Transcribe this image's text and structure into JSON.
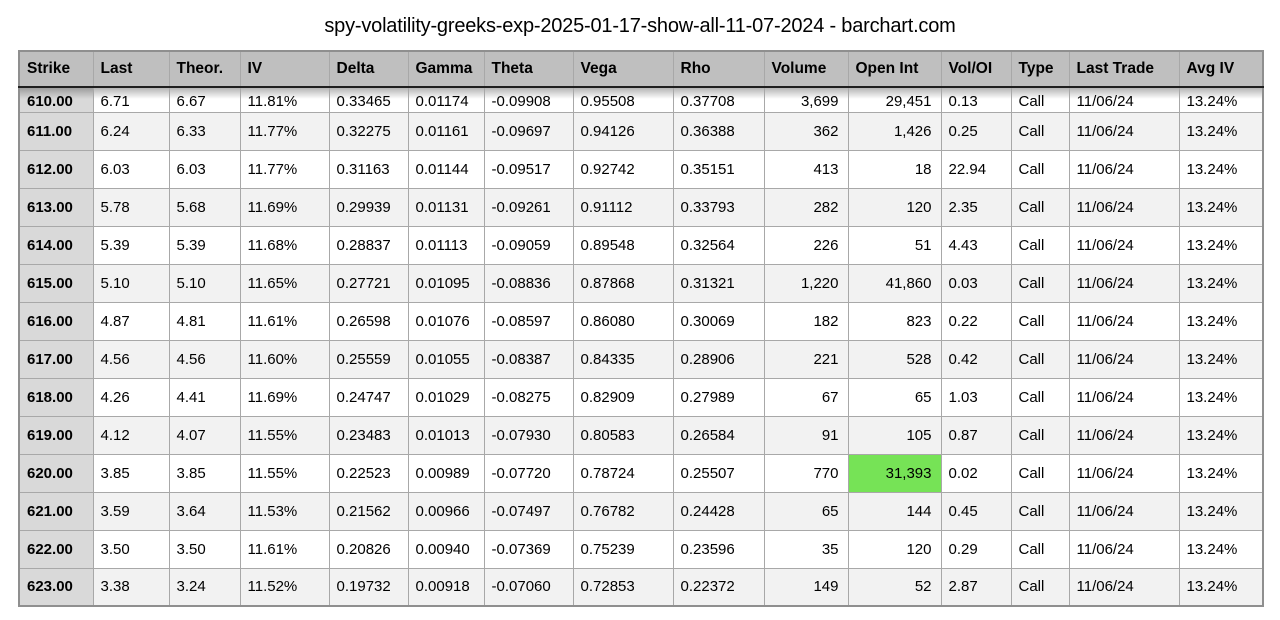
{
  "title": "spy-volatility-greeks-exp-2025-01-17-show-all-11-07-2024 - barchart.com",
  "table": {
    "columns": [
      {
        "key": "strike",
        "label": "Strike"
      },
      {
        "key": "last",
        "label": "Last"
      },
      {
        "key": "theor",
        "label": "Theor."
      },
      {
        "key": "iv",
        "label": "IV"
      },
      {
        "key": "delta",
        "label": "Delta"
      },
      {
        "key": "gamma",
        "label": "Gamma"
      },
      {
        "key": "theta",
        "label": "Theta"
      },
      {
        "key": "vega",
        "label": "Vega"
      },
      {
        "key": "rho",
        "label": "Rho"
      },
      {
        "key": "volume",
        "label": "Volume"
      },
      {
        "key": "open-int",
        "label": "Open Int"
      },
      {
        "key": "vol-oi",
        "label": "Vol/OI"
      },
      {
        "key": "type",
        "label": "Type"
      },
      {
        "key": "last-trade",
        "label": "Last Trade"
      },
      {
        "key": "avg-iv",
        "label": "Avg IV"
      }
    ],
    "rows": [
      [
        "610.00",
        "6.71",
        "6.67",
        "11.81%",
        "0.33465",
        "0.01174",
        "-0.09908",
        "0.95508",
        "0.37708",
        "3,699",
        "29,451",
        "0.13",
        "Call",
        "11/06/24",
        "13.24%"
      ],
      [
        "611.00",
        "6.24",
        "6.33",
        "11.77%",
        "0.32275",
        "0.01161",
        "-0.09697",
        "0.94126",
        "0.36388",
        "362",
        "1,426",
        "0.25",
        "Call",
        "11/06/24",
        "13.24%"
      ],
      [
        "612.00",
        "6.03",
        "6.03",
        "11.77%",
        "0.31163",
        "0.01144",
        "-0.09517",
        "0.92742",
        "0.35151",
        "413",
        "18",
        "22.94",
        "Call",
        "11/06/24",
        "13.24%"
      ],
      [
        "613.00",
        "5.78",
        "5.68",
        "11.69%",
        "0.29939",
        "0.01131",
        "-0.09261",
        "0.91112",
        "0.33793",
        "282",
        "120",
        "2.35",
        "Call",
        "11/06/24",
        "13.24%"
      ],
      [
        "614.00",
        "5.39",
        "5.39",
        "11.68%",
        "0.28837",
        "0.01113",
        "-0.09059",
        "0.89548",
        "0.32564",
        "226",
        "51",
        "4.43",
        "Call",
        "11/06/24",
        "13.24%"
      ],
      [
        "615.00",
        "5.10",
        "5.10",
        "11.65%",
        "0.27721",
        "0.01095",
        "-0.08836",
        "0.87868",
        "0.31321",
        "1,220",
        "41,860",
        "0.03",
        "Call",
        "11/06/24",
        "13.24%"
      ],
      [
        "616.00",
        "4.87",
        "4.81",
        "11.61%",
        "0.26598",
        "0.01076",
        "-0.08597",
        "0.86080",
        "0.30069",
        "182",
        "823",
        "0.22",
        "Call",
        "11/06/24",
        "13.24%"
      ],
      [
        "617.00",
        "4.56",
        "4.56",
        "11.60%",
        "0.25559",
        "0.01055",
        "-0.08387",
        "0.84335",
        "0.28906",
        "221",
        "528",
        "0.42",
        "Call",
        "11/06/24",
        "13.24%"
      ],
      [
        "618.00",
        "4.26",
        "4.41",
        "11.69%",
        "0.24747",
        "0.01029",
        "-0.08275",
        "0.82909",
        "0.27989",
        "67",
        "65",
        "1.03",
        "Call",
        "11/06/24",
        "13.24%"
      ],
      [
        "619.00",
        "4.12",
        "4.07",
        "11.55%",
        "0.23483",
        "0.01013",
        "-0.07930",
        "0.80583",
        "0.26584",
        "91",
        "105",
        "0.87",
        "Call",
        "11/06/24",
        "13.24%"
      ],
      [
        "620.00",
        "3.85",
        "3.85",
        "11.55%",
        "0.22523",
        "0.00989",
        "-0.07720",
        "0.78724",
        "0.25507",
        "770",
        "31,393",
        "0.02",
        "Call",
        "11/06/24",
        "13.24%"
      ],
      [
        "621.00",
        "3.59",
        "3.64",
        "11.53%",
        "0.21562",
        "0.00966",
        "-0.07497",
        "0.76782",
        "0.24428",
        "65",
        "144",
        "0.45",
        "Call",
        "11/06/24",
        "13.24%"
      ],
      [
        "622.00",
        "3.50",
        "3.50",
        "11.61%",
        "0.20826",
        "0.00940",
        "-0.07369",
        "0.75239",
        "0.23596",
        "35",
        "120",
        "0.29",
        "Call",
        "11/06/24",
        "13.24%"
      ],
      [
        "623.00",
        "3.38",
        "3.24",
        "11.52%",
        "0.19732",
        "0.00918",
        "-0.07060",
        "0.72853",
        "0.22372",
        "149",
        "52",
        "2.87",
        "Call",
        "11/06/24",
        "13.24%"
      ]
    ],
    "highlight": {
      "strike": "620.00",
      "column_key": "open-int",
      "color": "#76e356"
    }
  }
}
